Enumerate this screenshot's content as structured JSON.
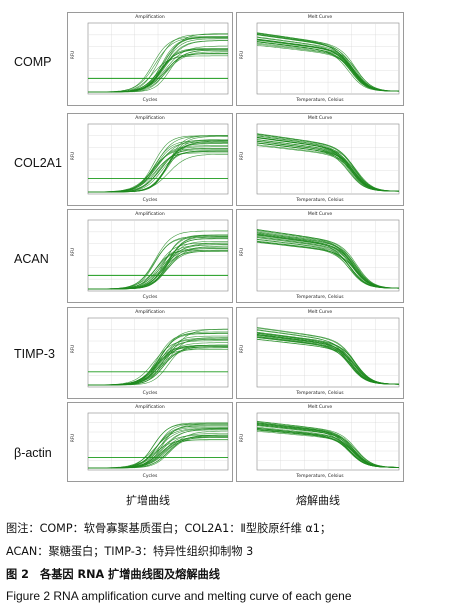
{
  "panel_titles": {
    "amplification": "Amplification",
    "melt": "Melt Curve"
  },
  "axis_labels": {
    "amp_x": "Cycles",
    "melt_x": "Temperature, Celsius",
    "y": "RFU"
  },
  "genes": [
    {
      "name": "COMP"
    },
    {
      "name": "COL2A1"
    },
    {
      "name": "ACAN"
    },
    {
      "name": "TIMP-3"
    },
    {
      "name": "β-actin"
    }
  ],
  "column_labels": {
    "amplification": "扩增曲线",
    "melt": "熔解曲线"
  },
  "caption": {
    "note_line1": "图注：COMP：软骨寡聚基质蛋白；COL2A1：Ⅱ型胶原纤维 α1；",
    "note_line2": "ACAN：聚糖蛋白；TIMP-3：特异性组织抑制物 3",
    "figure_cn": "图 2　各基因 RNA 扩增曲线图及熔解曲线",
    "figure_en": "Figure 2   RNA amplification curve and melting curve of each gene"
  },
  "colors": {
    "curve": "#1e8a1e",
    "threshold": "#1a9a1a",
    "grid": "#d8d8d8",
    "frame": "#9a9a9a"
  }
}
